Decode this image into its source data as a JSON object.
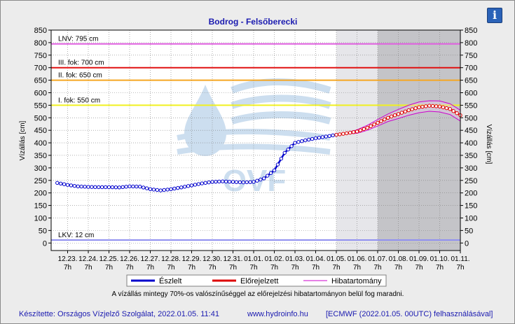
{
  "info_button": {
    "glyph": "i"
  },
  "chart_data": {
    "type": "line",
    "title": "Bodrog - Felsőberecki",
    "ylabel_left": "Vízállás [cm]",
    "ylabel_right": "Vízállás [cm]",
    "ylim": [
      -30,
      850
    ],
    "yticks": [
      0,
      50,
      100,
      150,
      200,
      250,
      300,
      350,
      400,
      450,
      500,
      550,
      600,
      650,
      700,
      750,
      800,
      850
    ],
    "x_tick_dates": [
      "12.23.",
      "12.24.",
      "12.25.",
      "12.26.",
      "12.27.",
      "12.28.",
      "12.29.",
      "12.30.",
      "12.31.",
      "01.01.",
      "01.02.",
      "01.03.",
      "01.04.",
      "01.05.",
      "01.06.",
      "01.07.",
      "01.08.",
      "01.09.",
      "01.10.",
      "01.11."
    ],
    "x_tick_hour": "7h",
    "forecast_region_start": "01.05. 7h",
    "dark_region_start": "01.07. 7h",
    "thresholds": [
      {
        "label": "LNV: 795 cm",
        "value": 795,
        "color": "#e060e0"
      },
      {
        "label": "III. fok: 700 cm",
        "value": 700,
        "color": "#e01010"
      },
      {
        "label": "II. fok: 650 cm",
        "value": 650,
        "color": "#f5a623"
      },
      {
        "label": "I. fok: 550 cm",
        "value": 550,
        "color": "#f0f020"
      },
      {
        "label": "LKV: 12 cm",
        "value": 12,
        "color": "#9090f0"
      }
    ],
    "series": [
      {
        "name": "Észlelt",
        "color": "#0000cc",
        "x": [
          "12.22. 19h",
          "12.23. 7h",
          "12.23. 19h",
          "12.24. 7h",
          "12.24. 19h",
          "12.25. 7h",
          "12.25. 19h",
          "12.26. 7h",
          "12.26. 19h",
          "12.27. 7h",
          "12.27. 19h",
          "12.28. 7h",
          "12.28. 19h",
          "12.29. 7h",
          "12.29. 19h",
          "12.30. 7h",
          "12.30. 19h",
          "12.31. 7h",
          "12.31. 19h",
          "01.01. 7h",
          "01.01. 19h",
          "01.02. 7h",
          "01.02. 19h",
          "01.03. 7h",
          "01.03. 19h",
          "01.04. 7h",
          "01.04. 19h",
          "01.05. 7h"
        ],
        "values": [
          240,
          232,
          226,
          224,
          223,
          223,
          222,
          226,
          225,
          215,
          210,
          215,
          222,
          230,
          238,
          244,
          246,
          244,
          242,
          244,
          258,
          290,
          360,
          400,
          410,
          418,
          425,
          432
        ]
      },
      {
        "name": "Előrejelzett",
        "color": "#dd0000",
        "x": [
          "01.05. 7h",
          "01.05. 19h",
          "01.06. 7h",
          "01.06. 19h",
          "01.07. 7h",
          "01.07. 19h",
          "01.08. 7h",
          "01.08. 19h",
          "01.09. 7h",
          "01.09. 19h",
          "01.10. 7h",
          "01.10. 19h",
          "01.11. 7h"
        ],
        "values": [
          432,
          438,
          445,
          460,
          480,
          500,
          515,
          530,
          542,
          548,
          545,
          535,
          510
        ]
      },
      {
        "name": "Hibatartomány",
        "color": "#cc00cc",
        "x": [
          "01.05. 7h",
          "01.05. 19h",
          "01.06. 7h",
          "01.06. 19h",
          "01.07. 7h",
          "01.07. 19h",
          "01.08. 7h",
          "01.08. 19h",
          "01.09. 7h",
          "01.09. 19h",
          "01.10. 7h",
          "01.10. 19h",
          "01.11. 7h"
        ],
        "upper": [
          432,
          440,
          452,
          470,
          493,
          515,
          533,
          550,
          563,
          568,
          567,
          556,
          530
        ],
        "lower": [
          432,
          436,
          438,
          450,
          467,
          485,
          497,
          510,
          520,
          526,
          523,
          513,
          487
        ]
      }
    ],
    "note": "A vízállás mintegy 70%-os valószínűséggel az előrejelzési hibatartományon belül fog maradni."
  },
  "footer": {
    "left": "Készítette: Országos Vízjelző Szolgálat, 2022.01.05. 11:41",
    "center": "www.hydroinfo.hu",
    "right": "[ECMWF (2022.01.05. 00UTC) felhasználásával]"
  },
  "colors": {
    "panel_bg": "#ececec",
    "plot_bg": "#ffffff",
    "forecast_bg": "#e6e6ea",
    "dark_bg": "#c4c4c8",
    "grid": "#808080",
    "watermark": "#bcd3ea"
  }
}
